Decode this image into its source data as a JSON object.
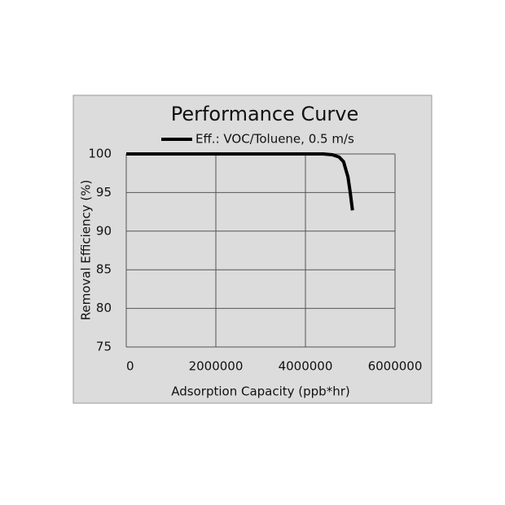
{
  "chart_data": {
    "type": "line",
    "title": "Performance Curve",
    "x_label": "Adsorption Capacity (ppb*hr)",
    "y_label": "Removal Efficiency (%)",
    "x": [
      0,
      4400000,
      4600000,
      4750000,
      4850000,
      4950000,
      5000000,
      5050000
    ],
    "series": [
      {
        "name": "Eff.: VOC/Toluene, 0.5 m/s",
        "color": "#000000",
        "values": [
          100,
          100,
          99.9,
          99.6,
          99,
          97,
          95,
          92.7
        ]
      }
    ],
    "xlim": [
      0,
      6000000
    ],
    "xticks": [
      0,
      2000000,
      4000000,
      6000000
    ],
    "ylim": [
      75,
      100
    ],
    "yticks": [
      75,
      80,
      85,
      90,
      95,
      100
    ],
    "grid": true,
    "legend": "top"
  }
}
